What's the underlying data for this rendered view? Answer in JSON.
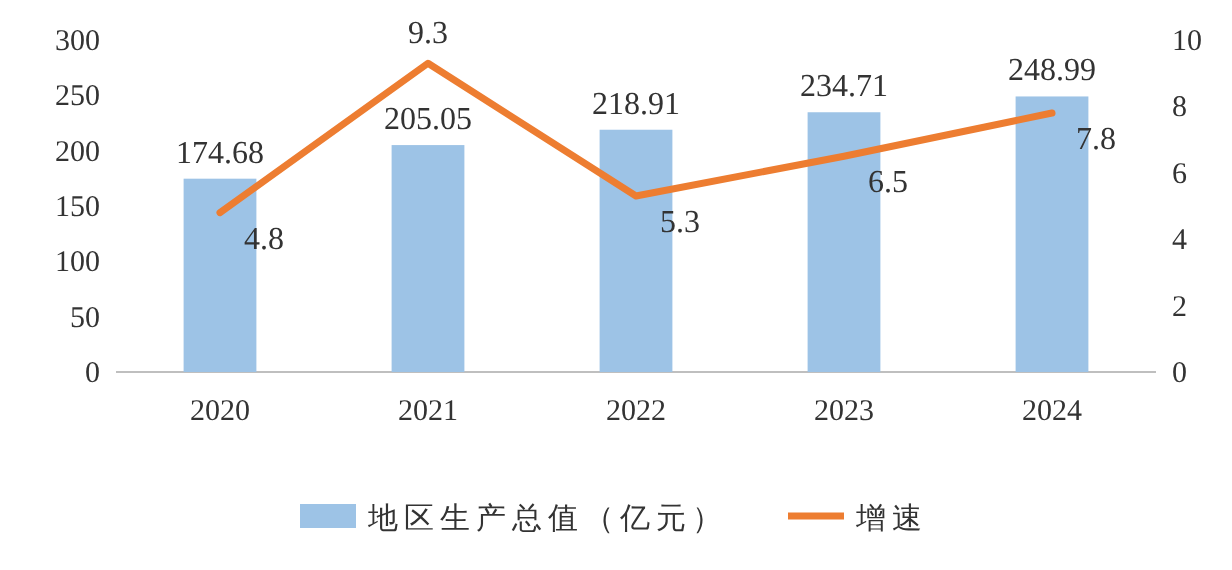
{
  "chart_data": {
    "type": "bar",
    "categories": [
      "2020",
      "2021",
      "2022",
      "2023",
      "2024"
    ],
    "series": [
      {
        "name": "地区生产总值（亿元）",
        "color": "#9dc3e6",
        "values": [
          174.68,
          205.05,
          218.91,
          234.71,
          248.99
        ]
      },
      {
        "name": "增速",
        "type": "line",
        "axis": "y2",
        "color": "#ed7d31",
        "values": [
          4.8,
          9.3,
          5.3,
          6.5,
          7.8
        ]
      }
    ],
    "ylim": [
      0,
      300
    ],
    "yticks": [
      0,
      50,
      100,
      150,
      200,
      250,
      300
    ],
    "y2lim": [
      0,
      10
    ],
    "y2ticks": [
      0,
      2,
      4,
      6,
      8,
      10
    ],
    "data_labels": true,
    "legend": "bottom",
    "grid": false,
    "marker": "none",
    "line_style": "solid"
  }
}
